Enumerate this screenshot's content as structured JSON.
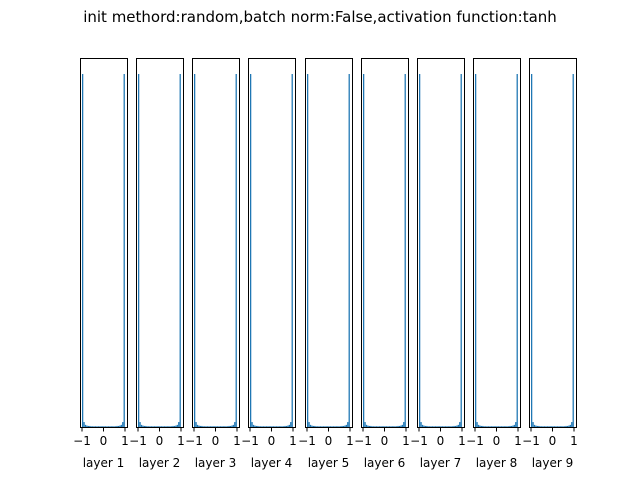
{
  "suptitle": "init methord:random,batch norm:False,activation function:tanh",
  "colors": {
    "bar": "#1f77b4",
    "frame": "#000000",
    "background": "#ffffff"
  },
  "chart_data": {
    "type": "bar",
    "layout": "small-multiples",
    "xlim": [
      -1,
      1
    ],
    "xticks": [
      -1,
      0,
      1
    ],
    "xtick_labels": [
      "−1",
      "0",
      "1"
    ],
    "y_axis_visible": false,
    "grid": false,
    "bins": 30,
    "relative_counts": [
      1.0,
      0.014,
      0.006,
      0.004,
      0.003,
      0.003,
      0.002,
      0.002,
      0.002,
      0.002,
      0.002,
      0.002,
      0.002,
      0.002,
      0.002,
      0.002,
      0.002,
      0.002,
      0.002,
      0.002,
      0.002,
      0.002,
      0.002,
      0.002,
      0.003,
      0.003,
      0.004,
      0.006,
      0.014,
      1.0
    ],
    "panels": [
      {
        "xlabel": "layer 1"
      },
      {
        "xlabel": "layer 2"
      },
      {
        "xlabel": "layer 3"
      },
      {
        "xlabel": "layer 4"
      },
      {
        "xlabel": "layer 5"
      },
      {
        "xlabel": "layer 6"
      },
      {
        "xlabel": "layer 7"
      },
      {
        "xlabel": "layer 8"
      },
      {
        "xlabel": "layer 9"
      }
    ]
  }
}
